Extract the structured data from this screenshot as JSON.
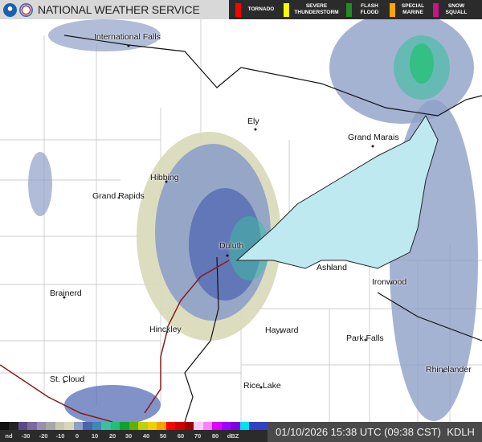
{
  "header": {
    "title": "NATIONAL WEATHER SERVICE",
    "logos": [
      "noaa-logo",
      "nws-logo"
    ],
    "warnings": [
      {
        "label": "TORNADO",
        "color": "#ff0000"
      },
      {
        "label": "SEVERE\nTHUNDERSTORM",
        "color": "#ffff00"
      },
      {
        "label": "FLASH\nFLOOD",
        "color": "#228b22"
      },
      {
        "label": "SPECIAL\nMARINE",
        "color": "#ffa500"
      },
      {
        "label": "SNOW\nSQUALL",
        "color": "#c71585"
      }
    ]
  },
  "map": {
    "cities": [
      {
        "name": "International Falls"
      },
      {
        "name": "Ely"
      },
      {
        "name": "Grand Marais"
      },
      {
        "name": "Hibbing"
      },
      {
        "name": "Grand Rapids"
      },
      {
        "name": "Duluth"
      },
      {
        "name": "Ashland"
      },
      {
        "name": "Ironwood"
      },
      {
        "name": "Brainerd"
      },
      {
        "name": "Hinckley"
      },
      {
        "name": "Hayward"
      },
      {
        "name": "Park Falls"
      },
      {
        "name": "Rhinelander"
      },
      {
        "name": "St. Cloud"
      },
      {
        "name": "Rice Lake"
      }
    ],
    "lake_color": "#bfe9f0"
  },
  "legend": {
    "ticks": [
      "nd",
      "-30",
      "-20",
      "-10",
      "0",
      "10",
      "20",
      "30",
      "40",
      "50",
      "60",
      "70",
      "80",
      "dBZ"
    ],
    "colors": [
      "#111111",
      "#222222",
      "#5a4a8a",
      "#7a6aa0",
      "#9a8fb0",
      "#a8a8a8",
      "#c8c8b0",
      "#d8d8b8",
      "#8ea0c8",
      "#4a64b0",
      "#3a8ab8",
      "#3ac0a0",
      "#20c070",
      "#10a030",
      "#60b000",
      "#c0d000",
      "#f0d000",
      "#ffa000",
      "#ff0000",
      "#d00000",
      "#a00000",
      "#ffc8ff",
      "#ff80ff",
      "#e000ff",
      "#a000ff",
      "#8000e0",
      "#00e0f0",
      "#3040c8",
      "#3040c8"
    ]
  },
  "status": {
    "timestamp": "01/10/2026 15:38 UTC (09:38 CST)",
    "station": "KDLH"
  }
}
